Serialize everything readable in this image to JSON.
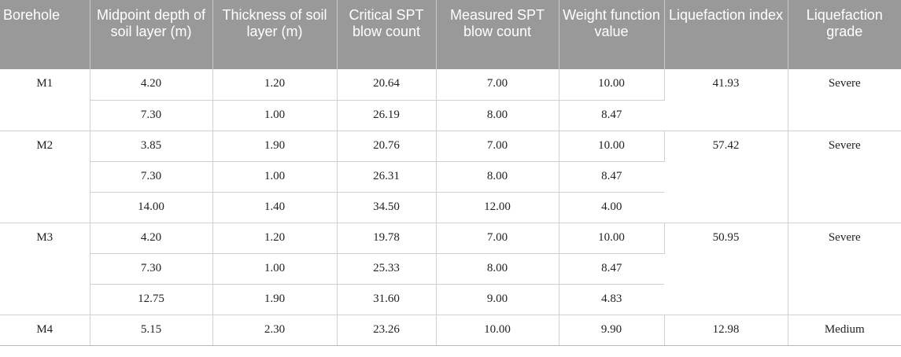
{
  "table": {
    "headers": [
      "Borehole",
      "Midpoint depth of soil layer (m)",
      "Thickness of soil layer (m)",
      "Critical SPT blow count",
      "Measured SPT blow count",
      "Weight function value",
      "Liquefaction index",
      "Liquefaction grade"
    ],
    "groups": [
      {
        "borehole": "M1",
        "index": "41.93",
        "grade": "Severe",
        "rows": [
          [
            "4.20",
            "1.20",
            "20.64",
            "7.00",
            "10.00"
          ],
          [
            "7.30",
            "1.00",
            "26.19",
            "8.00",
            "8.47"
          ]
        ]
      },
      {
        "borehole": "M2",
        "index": "57.42",
        "grade": "Severe",
        "rows": [
          [
            "3.85",
            "1.90",
            "20.76",
            "7.00",
            "10.00"
          ],
          [
            "7.30",
            "1.00",
            "26.31",
            "8.00",
            "8.47"
          ],
          [
            "14.00",
            "1.40",
            "34.50",
            "12.00",
            "4.00"
          ]
        ]
      },
      {
        "borehole": "M3",
        "index": "50.95",
        "grade": "Severe",
        "rows": [
          [
            "4.20",
            "1.20",
            "19.78",
            "7.00",
            "10.00"
          ],
          [
            "7.30",
            "1.00",
            "25.33",
            "8.00",
            "8.47"
          ],
          [
            "12.75",
            "1.90",
            "31.60",
            "9.00",
            "4.83"
          ]
        ]
      },
      {
        "borehole": "M4",
        "index": "12.98",
        "grade": "Medium",
        "rows": [
          [
            "5.15",
            "2.30",
            "23.26",
            "10.00",
            "9.90"
          ]
        ]
      }
    ]
  }
}
